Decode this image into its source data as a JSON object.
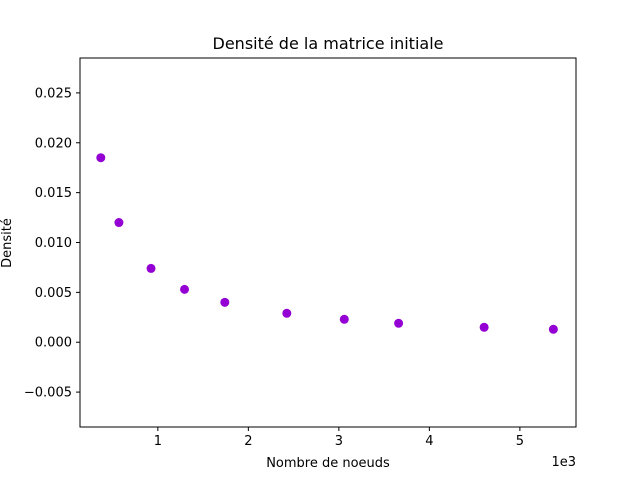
{
  "chart_data": {
    "type": "scatter",
    "title": "Densité de la matrice initiale",
    "xlabel": "Nombre de noeuds",
    "ylabel": "Densité",
    "x_offset_label": "1e3",
    "x_scale": 1000,
    "xlim": [
      140,
      5620
    ],
    "ylim": [
      -0.0085,
      0.0285
    ],
    "x_ticks": [
      1000,
      2000,
      3000,
      4000,
      5000
    ],
    "x_tick_labels": [
      "1",
      "2",
      "3",
      "4",
      "5"
    ],
    "y_ticks": [
      -0.005,
      0.0,
      0.005,
      0.01,
      0.015,
      0.02,
      0.025
    ],
    "y_tick_labels": [
      "−0.005",
      "0.000",
      "0.005",
      "0.010",
      "0.015",
      "0.020",
      "0.025"
    ],
    "grid": false,
    "marker_color": "#9400d3",
    "series": [
      {
        "points": [
          {
            "x": 370,
            "y": 0.0185
          },
          {
            "x": 570,
            "y": 0.012
          },
          {
            "x": 925,
            "y": 0.0074
          },
          {
            "x": 1295,
            "y": 0.0053
          },
          {
            "x": 1740,
            "y": 0.004
          },
          {
            "x": 2425,
            "y": 0.0029
          },
          {
            "x": 3060,
            "y": 0.0023
          },
          {
            "x": 3660,
            "y": 0.0019
          },
          {
            "x": 4605,
            "y": 0.0015
          },
          {
            "x": 5370,
            "y": 0.0013
          }
        ]
      }
    ]
  }
}
